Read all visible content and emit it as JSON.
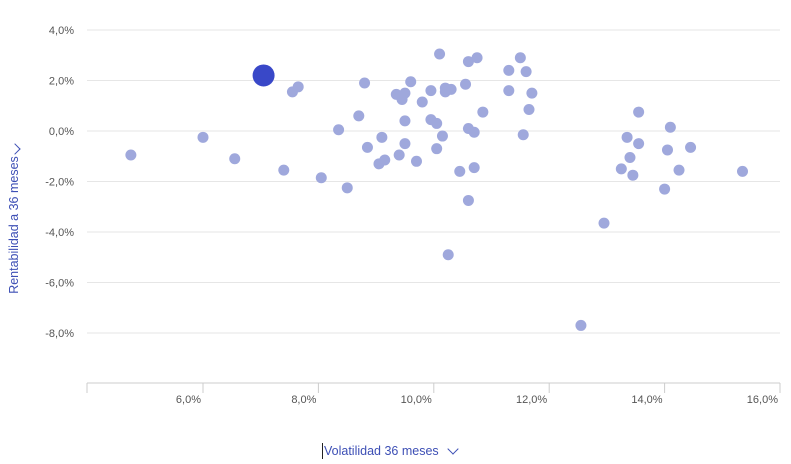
{
  "chart_data": {
    "type": "scatter",
    "xlabel": "Volatilidad 36 meses",
    "ylabel": "Rentabilidad a 36 meses",
    "xlim": [
      4.0,
      16.0
    ],
    "ylim": [
      -10.0,
      4.0
    ],
    "x_ticks": [
      "6,0%",
      "8,0%",
      "10,0%",
      "12,0%",
      "14,0%",
      "16,0%"
    ],
    "y_ticks": [
      "4,0%",
      "2,0%",
      "0,0%",
      "-2,0%",
      "-4,0%",
      "-6,0%",
      "-8,0%"
    ],
    "grid": true,
    "colors": {
      "points": "#9fa8dc",
      "highlight": "#3948c8",
      "axis_label": "#3d4fb5"
    },
    "highlight": {
      "x": 7.05,
      "y": 2.2
    },
    "points": [
      {
        "x": 4.75,
        "y": -0.95
      },
      {
        "x": 6.0,
        "y": -0.25
      },
      {
        "x": 6.55,
        "y": -1.1
      },
      {
        "x": 7.4,
        "y": -1.55
      },
      {
        "x": 7.55,
        "y": 1.55
      },
      {
        "x": 7.65,
        "y": 1.75
      },
      {
        "x": 8.05,
        "y": -1.85
      },
      {
        "x": 8.35,
        "y": 0.05
      },
      {
        "x": 8.5,
        "y": -2.25
      },
      {
        "x": 8.7,
        "y": 0.6
      },
      {
        "x": 8.8,
        "y": 1.9
      },
      {
        "x": 8.85,
        "y": -0.65
      },
      {
        "x": 9.05,
        "y": -1.3
      },
      {
        "x": 9.1,
        "y": -0.25
      },
      {
        "x": 9.15,
        "y": -1.15
      },
      {
        "x": 9.35,
        "y": 1.45
      },
      {
        "x": 9.4,
        "y": -0.95
      },
      {
        "x": 9.45,
        "y": 1.25
      },
      {
        "x": 9.5,
        "y": 1.5
      },
      {
        "x": 9.5,
        "y": 0.4
      },
      {
        "x": 9.5,
        "y": -0.5
      },
      {
        "x": 9.6,
        "y": 1.95
      },
      {
        "x": 9.7,
        "y": -1.2
      },
      {
        "x": 9.8,
        "y": 1.15
      },
      {
        "x": 9.95,
        "y": 1.6
      },
      {
        "x": 9.95,
        "y": 0.45
      },
      {
        "x": 10.05,
        "y": 0.3
      },
      {
        "x": 10.05,
        "y": -0.7
      },
      {
        "x": 10.1,
        "y": 3.05
      },
      {
        "x": 10.15,
        "y": -0.2
      },
      {
        "x": 10.2,
        "y": 1.7
      },
      {
        "x": 10.2,
        "y": 1.55
      },
      {
        "x": 10.25,
        "y": -4.9
      },
      {
        "x": 10.3,
        "y": 1.65
      },
      {
        "x": 10.45,
        "y": -1.6
      },
      {
        "x": 10.55,
        "y": 1.85
      },
      {
        "x": 10.6,
        "y": 2.75
      },
      {
        "x": 10.6,
        "y": 0.1
      },
      {
        "x": 10.6,
        "y": -2.75
      },
      {
        "x": 10.7,
        "y": -1.45
      },
      {
        "x": 10.7,
        "y": -0.05
      },
      {
        "x": 10.75,
        "y": 2.9
      },
      {
        "x": 10.85,
        "y": 0.75
      },
      {
        "x": 11.3,
        "y": 2.4
      },
      {
        "x": 11.3,
        "y": 1.6
      },
      {
        "x": 11.5,
        "y": 2.9
      },
      {
        "x": 11.55,
        "y": -0.15
      },
      {
        "x": 11.6,
        "y": 2.35
      },
      {
        "x": 11.65,
        "y": 0.85
      },
      {
        "x": 11.7,
        "y": 1.5
      },
      {
        "x": 12.55,
        "y": -7.7
      },
      {
        "x": 12.95,
        "y": -3.65
      },
      {
        "x": 13.25,
        "y": -1.5
      },
      {
        "x": 13.35,
        "y": -0.25
      },
      {
        "x": 13.4,
        "y": -1.05
      },
      {
        "x": 13.45,
        "y": -1.75
      },
      {
        "x": 13.55,
        "y": 0.75
      },
      {
        "x": 13.55,
        "y": -0.5
      },
      {
        "x": 14.0,
        "y": -2.3
      },
      {
        "x": 14.05,
        "y": -0.75
      },
      {
        "x": 14.1,
        "y": 0.15
      },
      {
        "x": 14.25,
        "y": -1.55
      },
      {
        "x": 14.45,
        "y": -0.65
      },
      {
        "x": 15.35,
        "y": -1.6
      }
    ]
  }
}
